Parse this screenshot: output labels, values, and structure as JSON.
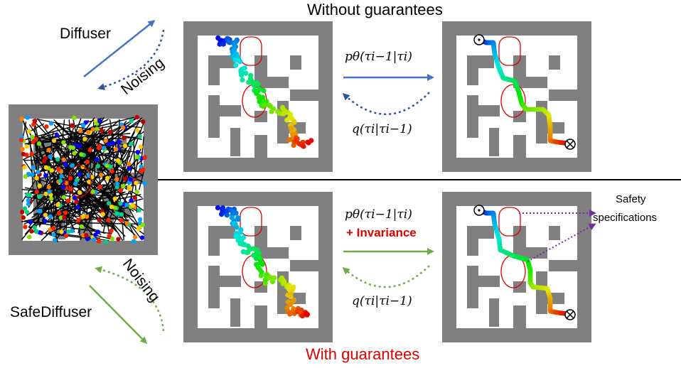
{
  "top_title": "Without guarantees",
  "bottom_title": "With guarantees",
  "labels": {
    "diffuser": "Diffuser",
    "noising_top": "Noising",
    "noising_bottom": "Noising",
    "safediffuser": "SafeDiffuser",
    "safety_specs_line1": "Safety",
    "safety_specs_line2": "specifications"
  },
  "equations": {
    "top_forward": "pθ(τi−1|τi)",
    "top_reverse": "q(τi|τi−1)",
    "bottom_forward": "pθ(τi−1|τi)",
    "bottom_invariance": "+ Invariance",
    "bottom_reverse": "q(τi|τi−1)"
  },
  "colors": {
    "maze_gray": "#808080",
    "diffuser_arrow": "#4472c4",
    "safediffuser_arrow": "#70ad47",
    "constraint": "#e00000",
    "safety_arrow": "#7030a0",
    "title_red": "#e00000"
  },
  "icons": {
    "start": "circle-dot-icon",
    "goal": "circle-cross-icon"
  }
}
